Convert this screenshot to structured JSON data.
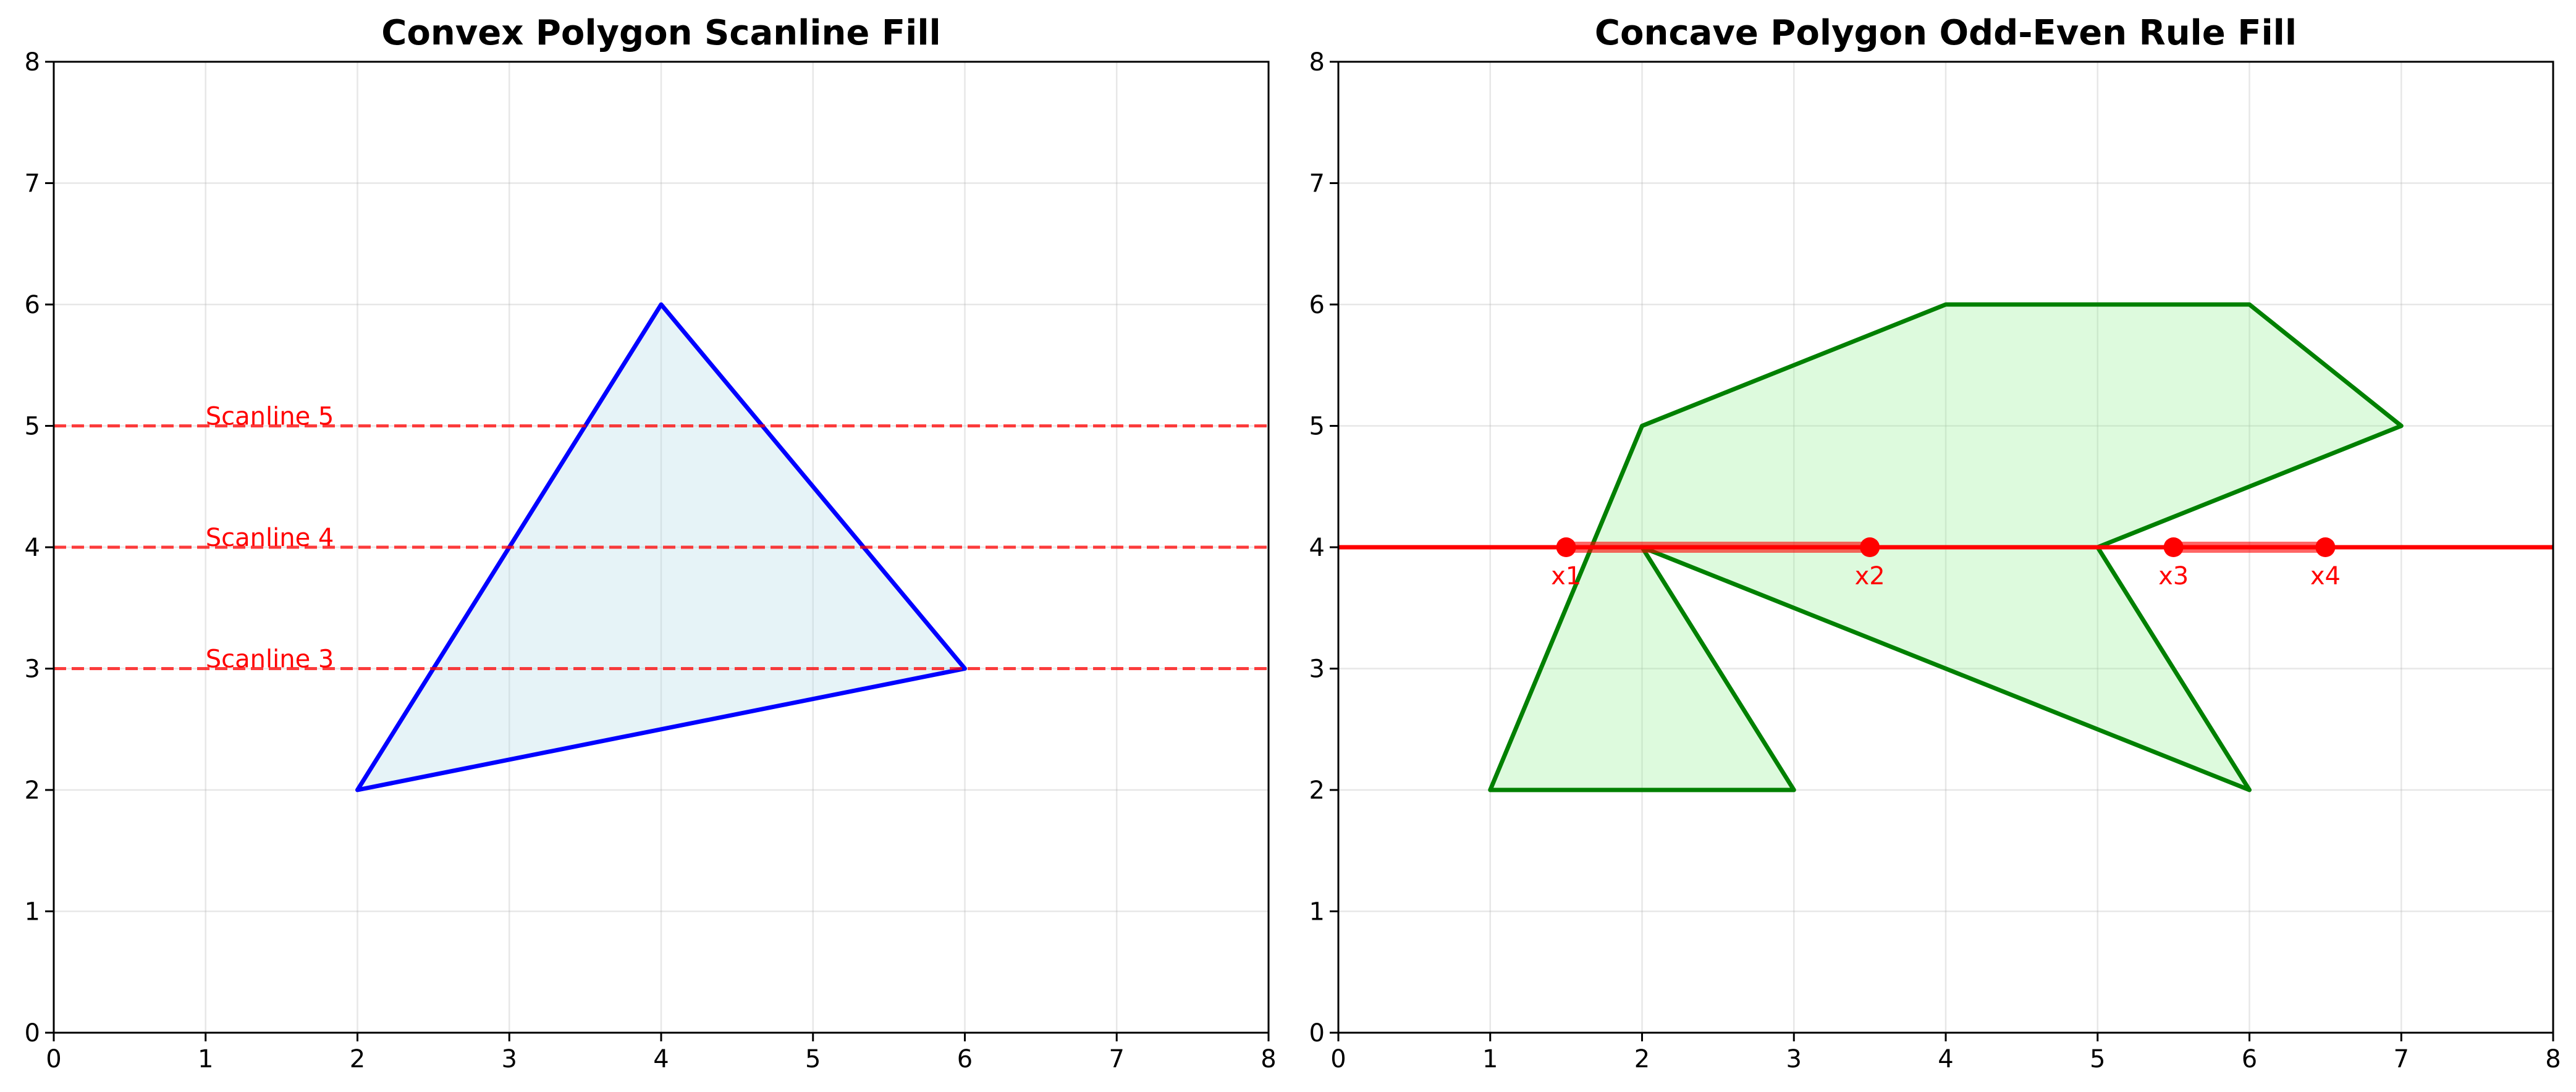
{
  "chart_data": [
    {
      "type": "line",
      "title": "Convex Polygon Scanline Fill",
      "xlabel": "",
      "ylabel": "",
      "xlim": [
        0,
        8
      ],
      "ylim": [
        0,
        8
      ],
      "xticks": [
        "0",
        "1",
        "2",
        "3",
        "4",
        "5",
        "6",
        "7",
        "8"
      ],
      "yticks": [
        "0",
        "1",
        "2",
        "3",
        "4",
        "5",
        "6",
        "7",
        "8"
      ],
      "grid": true,
      "polygon": {
        "vertices": [
          [
            2,
            2
          ],
          [
            6,
            3
          ],
          [
            4,
            6
          ]
        ],
        "edge_color": "#0000ff",
        "fill_color": "#add8e6",
        "fill_opacity": 0.3
      },
      "scanlines": [
        {
          "y": 3,
          "label": "Scanline 3",
          "label_x": 1
        },
        {
          "y": 4,
          "label": "Scanline 4",
          "label_x": 1
        },
        {
          "y": 5,
          "label": "Scanline 5",
          "label_x": 1
        }
      ],
      "scanline_color": "#ff0000"
    },
    {
      "type": "line",
      "title": "Concave Polygon Odd-Even Rule Fill",
      "xlabel": "",
      "ylabel": "",
      "xlim": [
        0,
        8
      ],
      "ylim": [
        0,
        8
      ],
      "xticks": [
        "0",
        "1",
        "2",
        "3",
        "4",
        "5",
        "6",
        "7",
        "8"
      ],
      "yticks": [
        "0",
        "1",
        "2",
        "3",
        "4",
        "5",
        "6",
        "7",
        "8"
      ],
      "grid": true,
      "polygon": {
        "vertices": [
          [
            1,
            2
          ],
          [
            3,
            2
          ],
          [
            2,
            4
          ],
          [
            6,
            2
          ],
          [
            5,
            4
          ],
          [
            7,
            5
          ],
          [
            6,
            6
          ],
          [
            4,
            6
          ],
          [
            2,
            5
          ]
        ],
        "edge_color": "#008000",
        "fill_color": "#90ee90",
        "fill_opacity": 0.3
      },
      "scanline": {
        "y": 4,
        "color": "#ff0000"
      },
      "intersections": [
        {
          "x": 1.5,
          "y": 4,
          "label": "x1"
        },
        {
          "x": 3.5,
          "y": 4,
          "label": "x2"
        },
        {
          "x": 5.5,
          "y": 4,
          "label": "x3"
        },
        {
          "x": 6.5,
          "y": 4,
          "label": "x4"
        }
      ],
      "fill_spans": [
        [
          1.5,
          3.5
        ],
        [
          5.5,
          6.5
        ]
      ],
      "point_color": "#ff0000"
    }
  ]
}
